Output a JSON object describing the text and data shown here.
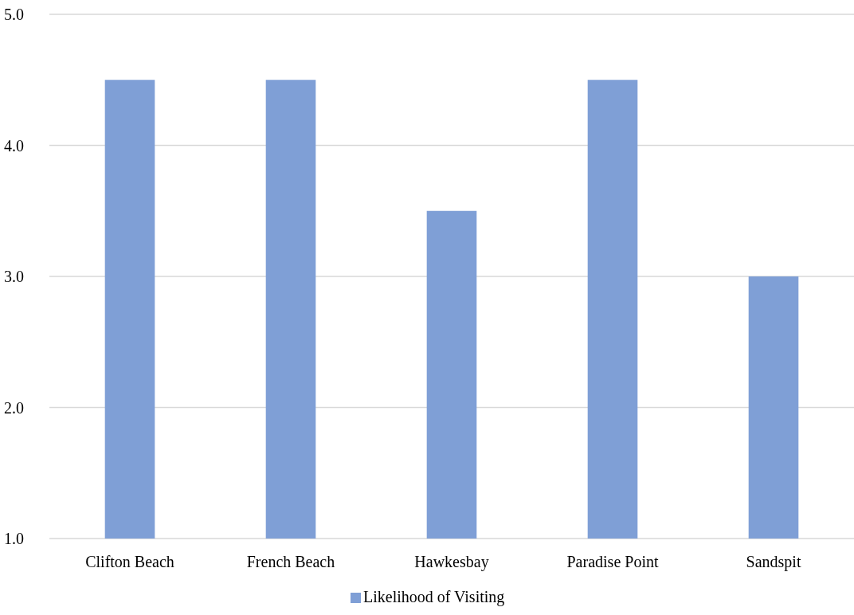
{
  "chart_data": {
    "type": "bar",
    "categories": [
      "Clifton Beach",
      "French Beach",
      "Hawkesbay",
      "Paradise Point",
      "Sandspit"
    ],
    "series": [
      {
        "name": "Likelihood of Visiting",
        "color": "#7f9fd6",
        "values": [
          4.5,
          4.5,
          3.5,
          4.5,
          3.0
        ]
      }
    ],
    "ylim": [
      1,
      5
    ],
    "yticks": [
      {
        "value": 1,
        "label": "1.0"
      },
      {
        "value": 2,
        "label": "2.0"
      },
      {
        "value": 3,
        "label": "3.0"
      },
      {
        "value": 4,
        "label": "4.0"
      },
      {
        "value": 5,
        "label": "5.0"
      }
    ],
    "grid": "y",
    "legend": "bottom"
  }
}
